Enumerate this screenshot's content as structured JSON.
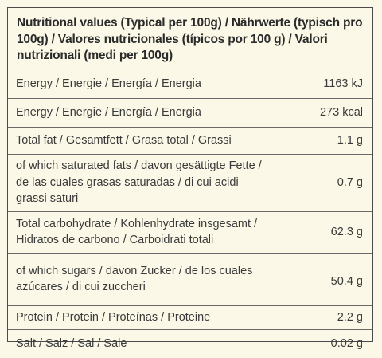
{
  "header": {
    "title": "Nutritional values (Typical per 100g) / Nährwerte (typisch pro 100g) / Valores nutricionales (típicos por 100 g) / Valori nutrizionali (medi per 100g)"
  },
  "rows": [
    {
      "label": "Energy / Energie / Energía / Energia",
      "value": "1163 kJ"
    },
    {
      "label": "Energy / Energie / Energía / Energia",
      "value": "273 kcal"
    },
    {
      "label": "Total fat / Gesamtfett / Grasa total / Grassi",
      "value": "1.1 g"
    },
    {
      "label": "of which saturated fats /  davon gesättigte Fette / de las cuales grasas saturadas / di cui acidi grassi saturi",
      "value": "0.7 g"
    },
    {
      "label": "Total carbohydrate / Kohlenhydrate insgesamt / Hidratos de carbono / Carboidrati totali",
      "value": "62.3 g"
    },
    {
      "label": "of which sugars / davon Zucker / de los cuales azúcares / di cui zuccheri",
      "value": "50.4 g"
    },
    {
      "label": "Protein / Protein / Proteínas / Proteine",
      "value": "2.2 g"
    },
    {
      "label": "Salt / Salz / Sal / Sale",
      "value": "0.02 g"
    }
  ]
}
